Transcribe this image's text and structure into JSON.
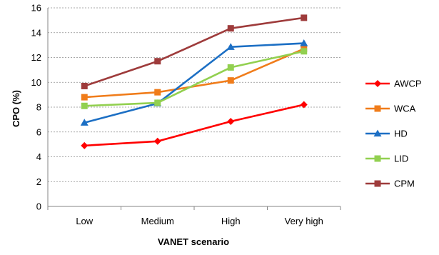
{
  "chart_data": {
    "type": "line",
    "title": "",
    "xlabel": "VANET scenario",
    "ylabel": "CPO (%)",
    "categories": [
      "Low",
      "Medium",
      "High",
      "Very high"
    ],
    "ylim": [
      0,
      16
    ],
    "yticks": [
      0,
      2,
      4,
      6,
      8,
      10,
      12,
      14,
      16
    ],
    "grid": "horizontal dashed",
    "legend_position": "right",
    "series": [
      {
        "name": "AWCP",
        "color": "#ff0000",
        "marker": "diamond",
        "values": [
          4.9,
          5.25,
          6.85,
          8.2
        ]
      },
      {
        "name": "WCA",
        "color": "#f07c1a",
        "marker": "square",
        "values": [
          8.8,
          9.2,
          10.15,
          12.7
        ]
      },
      {
        "name": "HD",
        "color": "#1c6fc4",
        "marker": "triangle",
        "values": [
          6.75,
          8.3,
          12.85,
          13.15
        ]
      },
      {
        "name": "LID",
        "color": "#92d050",
        "marker": "square",
        "values": [
          8.1,
          8.35,
          11.2,
          12.5
        ]
      },
      {
        "name": "CPM",
        "color": "#9e3b3b",
        "marker": "square",
        "values": [
          9.7,
          11.7,
          14.35,
          15.2
        ]
      }
    ]
  }
}
